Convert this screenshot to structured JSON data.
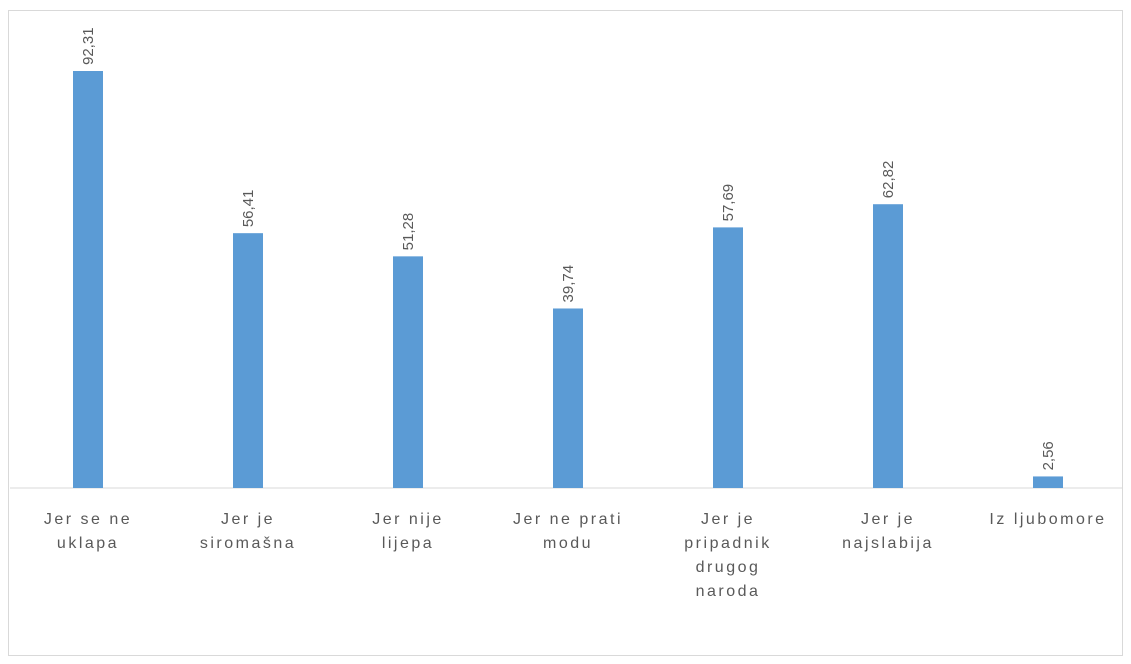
{
  "chart_data": {
    "type": "bar",
    "categories": [
      [
        "Jer se ne",
        "uklapa"
      ],
      [
        "Jer je",
        "siromašna"
      ],
      [
        "Jer nije",
        "lijepa"
      ],
      [
        "Jer ne prati",
        "modu"
      ],
      [
        "Jer je",
        "pripadnik",
        "drugog",
        "naroda"
      ],
      [
        "Jer je",
        "najslabija"
      ],
      [
        "Iz ljubomore"
      ]
    ],
    "values": [
      92.31,
      56.41,
      51.28,
      39.74,
      57.69,
      62.82,
      2.56
    ],
    "value_labels": [
      "92,31",
      "56,41",
      "51,28",
      "39,74",
      "57,69",
      "62,82",
      "2,56"
    ],
    "ylim": [
      0,
      92.31
    ],
    "grid": false,
    "legend": "none",
    "title": "",
    "xlabel": "",
    "ylabel": "",
    "colors": {
      "bar": "#5b9bd5",
      "text": "#595959",
      "axis": "#d9d9d9"
    }
  }
}
